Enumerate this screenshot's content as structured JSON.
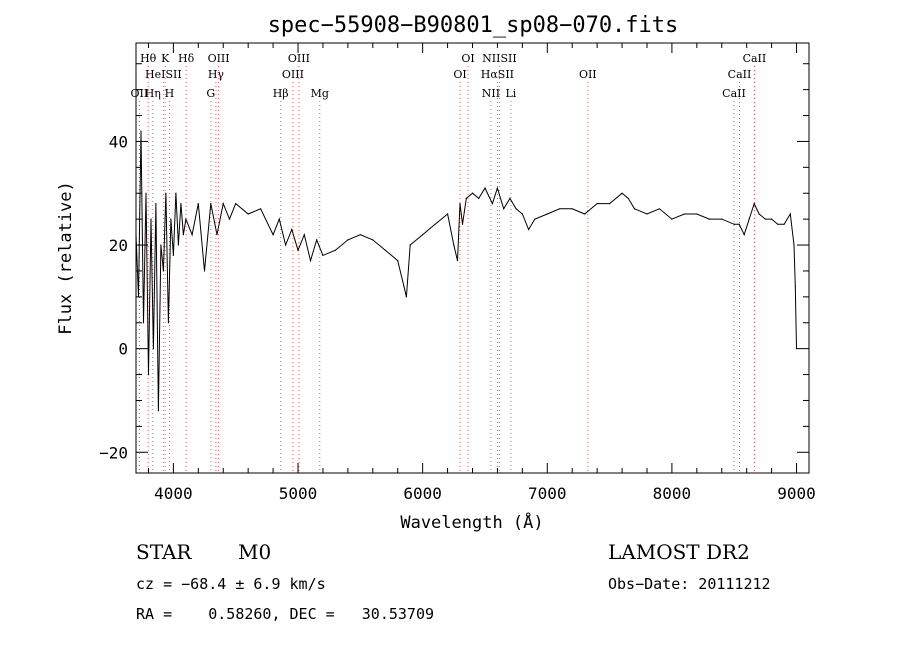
{
  "chart_data": {
    "type": "line",
    "title": "spec−55908−B90801_sp08−070.fits",
    "xlabel": "Wavelength (Å)",
    "ylabel": "Flux (relative)",
    "xlim": [
      3700,
      9100
    ],
    "ylim": [
      -24,
      59
    ],
    "x_ticks": [
      4000,
      5000,
      6000,
      7000,
      8000,
      9000
    ],
    "x_tick_labels": [
      "4000",
      "5000",
      "6000",
      "7000",
      "8000",
      "9000"
    ],
    "y_ticks": [
      -20,
      0,
      20,
      40
    ],
    "y_tick_labels": [
      "−20",
      "0",
      "20",
      "40"
    ],
    "grid": false,
    "colors": {
      "spectrum": "#000000",
      "line_markers": "#e06060"
    },
    "series": [
      {
        "x": [
          3700,
          3720,
          3740,
          3760,
          3780,
          3800,
          3820,
          3840,
          3860,
          3880,
          3900,
          3920,
          3940,
          3960,
          3980,
          4000,
          4020,
          4040,
          4060,
          4080,
          4100,
          4150,
          4200,
          4250,
          4300,
          4350,
          4400,
          4450,
          4500,
          4600,
          4700,
          4800,
          4850,
          4900,
          4950,
          5000,
          5050,
          5100,
          5150,
          5200,
          5300,
          5400,
          5500,
          5600,
          5700,
          5800,
          5850,
          5870,
          5900,
          6000,
          6100,
          6200,
          6250,
          6280,
          6300,
          6320,
          6350,
          6400,
          6450,
          6500,
          6560,
          6600,
          6650,
          6700,
          6750,
          6800,
          6850,
          6900,
          7000,
          7100,
          7200,
          7300,
          7400,
          7500,
          7600,
          7650,
          7700,
          7800,
          7900,
          8000,
          8100,
          8200,
          8300,
          8400,
          8500,
          8540,
          8580,
          8620,
          8660,
          8700,
          8750,
          8800,
          8850,
          8900,
          8950,
          8980,
          8990,
          9000
        ],
        "y": [
          22,
          10,
          42,
          5,
          30,
          -5,
          25,
          0,
          28,
          -12,
          20,
          15,
          30,
          5,
          25,
          18,
          30,
          20,
          28,
          22,
          25,
          22,
          28,
          15,
          28,
          22,
          28,
          25,
          28,
          26,
          27,
          22,
          25,
          20,
          23,
          19,
          22,
          17,
          21,
          18,
          19,
          21,
          22,
          21,
          19,
          17,
          12,
          10,
          20,
          22,
          24,
          26,
          20,
          17,
          28,
          24,
          29,
          30,
          29,
          31,
          28,
          31,
          27,
          29,
          27,
          26,
          23,
          25,
          26,
          27,
          27,
          26,
          28,
          28,
          30,
          29,
          27,
          26,
          27,
          25,
          26,
          26,
          25,
          25,
          24,
          24,
          22,
          25,
          28,
          26,
          25,
          25,
          24,
          24,
          26,
          20,
          12,
          0
        ]
      }
    ],
    "line_markers": [
      {
        "label": "Hθ",
        "wavelength": 3798,
        "row": 1
      },
      {
        "label": "K",
        "wavelength": 3934,
        "row": 1
      },
      {
        "label": "Hδ",
        "wavelength": 4102,
        "row": 1
      },
      {
        "label": "OIII",
        "wavelength": 4363,
        "row": 1
      },
      {
        "label": "OIII",
        "wavelength": 5007,
        "row": 1
      },
      {
        "label": "OI",
        "wavelength": 6364,
        "row": 1
      },
      {
        "label": "NIISII",
        "wavelength": 6616,
        "row": 1
      },
      {
        "label": "CaII",
        "wavelength": 8662,
        "row": 1
      },
      {
        "label": "HeISII",
        "wavelength": 3920,
        "row": 2
      },
      {
        "label": "Hγ",
        "wavelength": 4341,
        "row": 2
      },
      {
        "label": "OIII",
        "wavelength": 4959,
        "row": 2
      },
      {
        "label": "OI",
        "wavelength": 6300,
        "row": 2
      },
      {
        "label": "HαSII",
        "wavelength": 6600,
        "row": 2
      },
      {
        "label": "OII",
        "wavelength": 7325,
        "row": 2
      },
      {
        "label": "CaII",
        "wavelength": 8542,
        "row": 2
      },
      {
        "label": "OII",
        "wavelength": 3727,
        "row": 3
      },
      {
        "label": "Hη",
        "wavelength": 3835,
        "row": 3
      },
      {
        "label": "H",
        "wavelength": 3968,
        "row": 3
      },
      {
        "label": "G",
        "wavelength": 4300,
        "row": 3
      },
      {
        "label": "Hβ",
        "wavelength": 4861,
        "row": 3
      },
      {
        "label": "Mg",
        "wavelength": 5175,
        "row": 3
      },
      {
        "label": "NII",
        "wavelength": 6548,
        "row": 3
      },
      {
        "label": "Li",
        "wavelength": 6708,
        "row": 3
      },
      {
        "label": "CaII",
        "wavelength": 8498,
        "row": 3
      }
    ]
  },
  "info": {
    "object_class": "STAR",
    "subclass": "M0",
    "survey": "LAMOST DR2",
    "redshift": "cz = −68.4 ± 6.9 km/s",
    "obs_date": "Obs−Date: 20111212",
    "coords": "RA =    0.58260, DEC =   30.53709"
  }
}
